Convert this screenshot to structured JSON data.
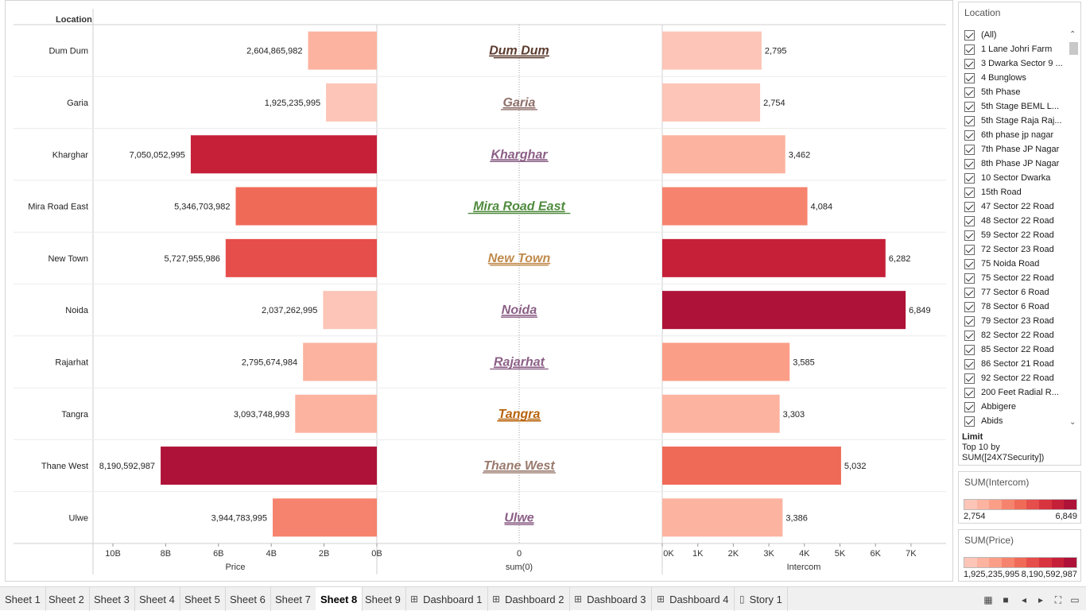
{
  "header": {
    "location_label": "Location"
  },
  "chart_data": {
    "type": "bar",
    "categories": [
      "Dum Dum",
      "Garia",
      "Kharghar",
      "Mira Road East",
      "New Town",
      "Noida",
      "Rajarhat",
      "Tangra",
      "Thane West",
      "Ulwe"
    ],
    "series": [
      {
        "name": "Price",
        "values": [
          2604865982,
          1925235995,
          7050052995,
          5346703982,
          5727955986,
          2037262995,
          2795674984,
          3093748993,
          8190592987,
          3944783995
        ]
      },
      {
        "name": "Intercom",
        "values": [
          2795,
          2754,
          3462,
          4084,
          6282,
          6849,
          3585,
          3303,
          5032,
          3386
        ]
      }
    ],
    "price_labels": [
      "2,604,865,982",
      "1,925,235,995",
      "7,050,052,995",
      "5,346,703,982",
      "5,727,955,986",
      "2,037,262,995",
      "2,795,674,984",
      "3,093,748,993",
      "8,190,592,987",
      "3,944,783,995"
    ],
    "intercom_labels": [
      "2,795",
      "2,754",
      "3,462",
      "4,084",
      "6,282",
      "6,849",
      "3,585",
      "3,303",
      "5,032",
      "3,386"
    ],
    "center_label_colors": [
      "#5c3b2e",
      "#8e6f6a",
      "#8b5f86",
      "#4f8a3c",
      "#c08a4c",
      "#8b5f86",
      "#8b5f86",
      "#b8620a",
      "#9a7a6e",
      "#8b5f86"
    ],
    "price_axis": {
      "title": "Price",
      "ticks": [
        10,
        8,
        6,
        4,
        2,
        0
      ],
      "tick_labels": [
        "10B",
        "8B",
        "6B",
        "4B",
        "2B",
        "0B"
      ],
      "range_b": [
        0,
        11.0
      ]
    },
    "center_axis": {
      "title": "sum(0)",
      "tick_label": "0"
    },
    "intercom_axis": {
      "title": "Intercom",
      "ticks": [
        0,
        1000,
        2000,
        3000,
        4000,
        5000,
        6000,
        7000
      ],
      "tick_labels": [
        "0K",
        "1K",
        "2K",
        "3K",
        "4K",
        "5K",
        "6K",
        "7K"
      ],
      "range": [
        0,
        7350
      ]
    },
    "price_color_range": [
      1925235995,
      8190592987
    ],
    "intercom_color_range": [
      2754,
      6849
    ],
    "grid": false
  },
  "filter": {
    "title": "Location",
    "items": [
      "(All)",
      "1 Lane Johri Farm",
      "3 Dwarka Sector 9 ...",
      "4 Bunglows",
      "5th Phase",
      "5th Stage BEML L...",
      "5th Stage Raja Raj...",
      "6th phase jp nagar",
      "7th Phase JP Nagar",
      "8th Phase JP Nagar",
      "10 Sector Dwarka",
      "15th Road",
      "47 Sector 22 Road",
      "48 Sector 22 Road",
      "59 Sector 22 Road",
      "72 Sector 23 Road",
      "75 Noida Road",
      "75 Sector 22 Road",
      "77 Sector 6 Road",
      "78 Sector 6 Road",
      "79 Sector 23 Road",
      "82 Sector 22 Road",
      "85 Sector 22 Road",
      "86 Sector 21 Road",
      "92 Sector 22 Road",
      "200 Feet Radial R...",
      "Abbigere",
      "Abids"
    ],
    "limit_heading": "Limit",
    "limit_line1": "Top 10 by",
    "limit_line2": "SUM([24X7Security])"
  },
  "legends": {
    "intercom": {
      "title": "SUM(Intercom)",
      "min": "2,754",
      "max": "6,849"
    },
    "price": {
      "title": "SUM(Price)",
      "min": "1,925,235,995",
      "max": "8,190,592,987"
    },
    "swatches": [
      "#fcc5b7",
      "#fcb3a0",
      "#fb9e87",
      "#f6836d",
      "#f06a58",
      "#e64e4b",
      "#d8343f",
      "#c62039",
      "#ae1238"
    ]
  },
  "tabs": [
    {
      "label": "Sheet 1",
      "icon": ""
    },
    {
      "label": "Sheet 2",
      "icon": ""
    },
    {
      "label": "Sheet 3",
      "icon": ""
    },
    {
      "label": "Sheet 4",
      "icon": ""
    },
    {
      "label": "Sheet 5",
      "icon": ""
    },
    {
      "label": "Sheet 6",
      "icon": ""
    },
    {
      "label": "Sheet 7",
      "icon": ""
    },
    {
      "label": "Sheet 8",
      "icon": "",
      "active": true
    },
    {
      "label": "Sheet 9",
      "icon": ""
    },
    {
      "label": "Dashboard 1",
      "icon": "dashboard-icon"
    },
    {
      "label": "Dashboard 2",
      "icon": "dashboard-icon"
    },
    {
      "label": "Dashboard 3",
      "icon": "dashboard-icon"
    },
    {
      "label": "Dashboard 4",
      "icon": "dashboard-icon"
    },
    {
      "label": "Story 1",
      "icon": "story-icon"
    }
  ],
  "controls": [
    "grid-view-icon",
    "filmstrip-icon",
    "prev-icon",
    "next-icon",
    "fullscreen-icon",
    "presentation-icon"
  ]
}
